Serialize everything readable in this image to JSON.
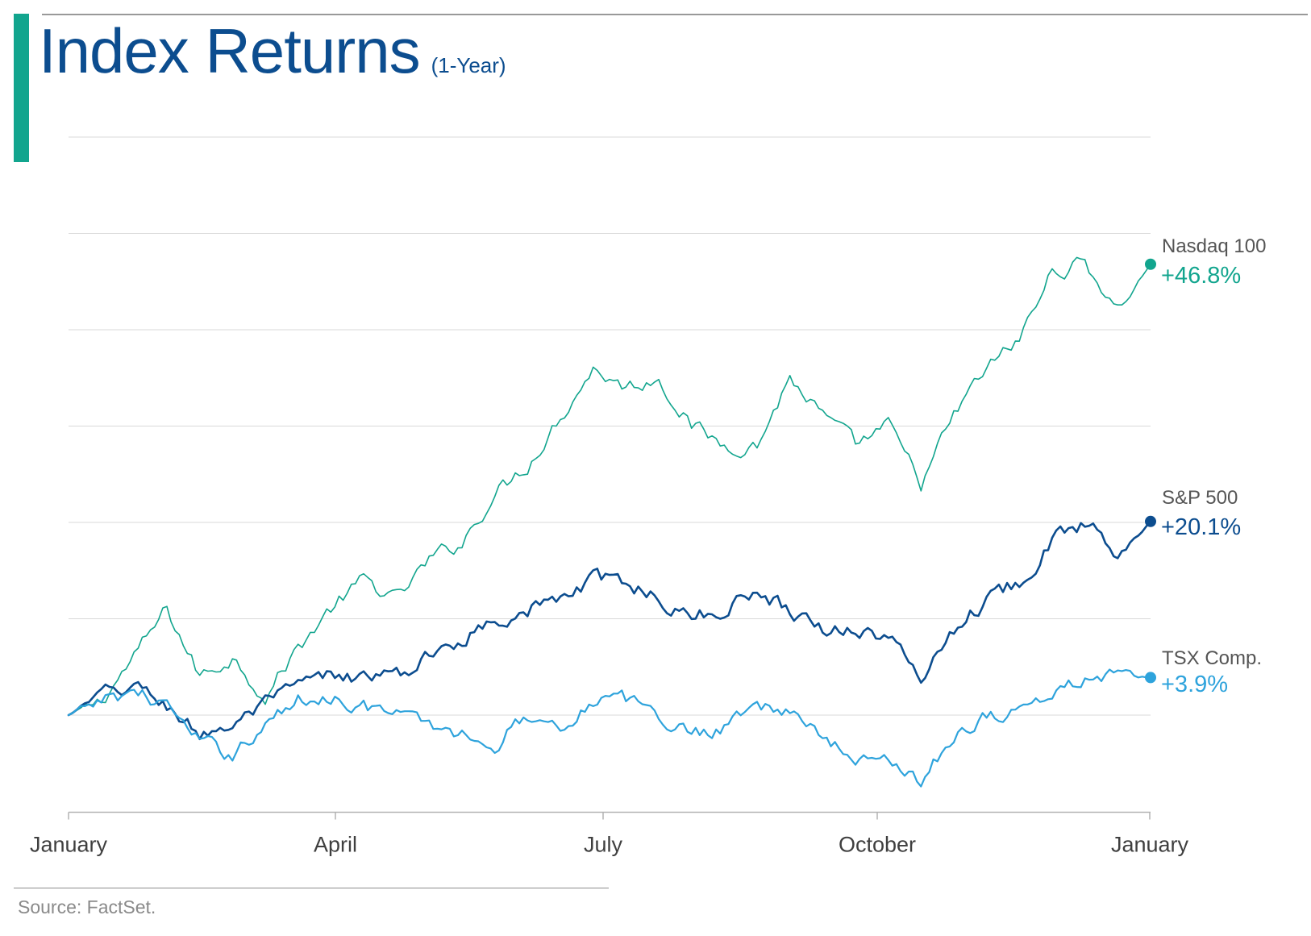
{
  "title": "Index Returns",
  "subtitle": "(1-Year)",
  "source": "Source: FactSet.",
  "colors": {
    "accent_bar": "#12a58e",
    "title": "#0c4d8f",
    "gridline": "#d9d9d9",
    "axis": "#b3b3b3"
  },
  "chart_data": {
    "type": "line",
    "title": "Index Returns",
    "subtitle": "(1-Year)",
    "xlabel": "",
    "ylabel": "",
    "x_ticks": [
      "January",
      "April",
      "July",
      "October",
      "January"
    ],
    "y_unit": "percent",
    "ylim": [
      -10,
      60
    ],
    "y_gridlines": [
      0,
      10,
      20,
      30,
      40,
      50,
      60
    ],
    "y_tick_labels_shown": false,
    "grid": true,
    "legend": "end-of-line labels (right)",
    "series": [
      {
        "name": "Nasdaq 100",
        "value_label": "+46.8%",
        "color": "#12a58e",
        "final_value": 46.8,
        "line_width": 1.6,
        "x": [
          "Jan",
          "Jan",
          "Feb",
          "Feb",
          "Mar",
          "Mar",
          "Mar",
          "Apr",
          "Apr",
          "May",
          "May",
          "May",
          "Jun",
          "Jun",
          "Jun",
          "Jul",
          "Jul",
          "Jul",
          "Aug",
          "Aug",
          "Aug",
          "Sep",
          "Sep",
          "Sep",
          "Oct",
          "Oct",
          "Oct",
          "Nov",
          "Nov",
          "Nov",
          "Dec",
          "Dec",
          "Dec",
          "Jan"
        ],
        "y": [
          0,
          1.5,
          6,
          11,
          4,
          6,
          2,
          7,
          11,
          14,
          12,
          16,
          18,
          23,
          26,
          31,
          36,
          34,
          35,
          30,
          28,
          28,
          35,
          31,
          28,
          30,
          24,
          31,
          36,
          39,
          46,
          47,
          42,
          46.8
        ]
      },
      {
        "name": "S&P 500",
        "value_label": "+20.1%",
        "color": "#0c4d8f",
        "final_value": 20.1,
        "line_width": 2.6,
        "x": [
          "Jan",
          "Jan",
          "Feb",
          "Feb",
          "Mar",
          "Mar",
          "Mar",
          "Apr",
          "Apr",
          "May",
          "May",
          "May",
          "Jun",
          "Jun",
          "Jun",
          "Jul",
          "Jul",
          "Jul",
          "Aug",
          "Aug",
          "Aug",
          "Sep",
          "Sep",
          "Sep",
          "Oct",
          "Oct",
          "Oct",
          "Nov",
          "Nov",
          "Nov",
          "Dec",
          "Dec",
          "Dec",
          "Jan"
        ],
        "y": [
          0,
          2,
          3,
          1,
          -2,
          -1,
          1,
          3,
          4,
          4,
          4,
          6,
          8,
          10,
          11,
          12,
          14,
          14,
          12,
          10,
          11,
          13,
          11,
          9,
          9,
          8,
          4,
          9,
          12,
          14,
          18,
          20,
          17,
          20.1
        ]
      },
      {
        "name": "TSX Comp.",
        "value_label": "+3.9%",
        "color": "#2ea3dc",
        "final_value": 3.9,
        "line_width": 2.2,
        "x": [
          "Jan",
          "Jan",
          "Feb",
          "Feb",
          "Mar",
          "Mar",
          "Mar",
          "Apr",
          "Apr",
          "May",
          "May",
          "May",
          "Jun",
          "Jun",
          "Jun",
          "Jul",
          "Jul",
          "Jul",
          "Aug",
          "Aug",
          "Aug",
          "Sep",
          "Sep",
          "Sep",
          "Oct",
          "Oct",
          "Oct",
          "Nov",
          "Nov",
          "Nov",
          "Dec",
          "Dec",
          "Dec",
          "Jan"
        ],
        "y": [
          0,
          1.5,
          2.5,
          1,
          -3,
          -4,
          -1,
          1.5,
          2,
          1,
          0,
          -1,
          -2,
          -3,
          0,
          -1,
          1.5,
          1.5,
          0,
          -2,
          -1,
          1.5,
          0,
          -2,
          -5,
          -4,
          -7,
          -2,
          0,
          0.5,
          2,
          4,
          4,
          3.9
        ]
      }
    ]
  }
}
